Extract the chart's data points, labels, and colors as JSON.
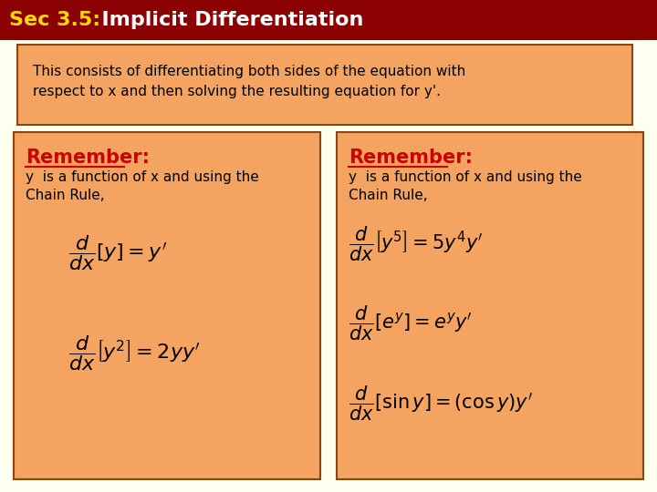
{
  "title_sec": "Sec 3.5:",
  "title_main": "  Implicit Differentiation",
  "title_bg": "#8B0000",
  "title_fg_sec": "#FFD700",
  "title_fg_main": "#FFFFFF",
  "bg_color": "#FFFFF0",
  "box1_bg": "#F4A460",
  "box1_border": "#8B4513",
  "box1_line1": "This consists of differentiating both sides of the equation with",
  "box1_line2": "respect to x and then solving the resulting equation for y'.",
  "box2_bg": "#F4A460",
  "box2_border": "#8B4513",
  "box3_bg": "#F4A460",
  "box3_border": "#8B4513",
  "remember_color": "#CC0000",
  "text_color": "#000000",
  "remember_label": "Remember:",
  "body_line1": "y  is a function of x and using the",
  "body_line2": "Chain Rule,",
  "left_eq1": "$\\dfrac{d}{dx}\\left[y\\right]= y'$",
  "left_eq2": "$\\dfrac{d}{dx}\\left[y^2\\right]= 2yy'$",
  "right_eq1": "$\\dfrac{d}{dx}\\left[y^5\\right]= 5y^4 y'$",
  "right_eq2": "$\\dfrac{d}{dx}\\left[e^y\\right]= e^y y'$",
  "right_eq3": "$\\dfrac{d}{dx}\\left[\\sin y\\right]= (\\cos y)y'$"
}
